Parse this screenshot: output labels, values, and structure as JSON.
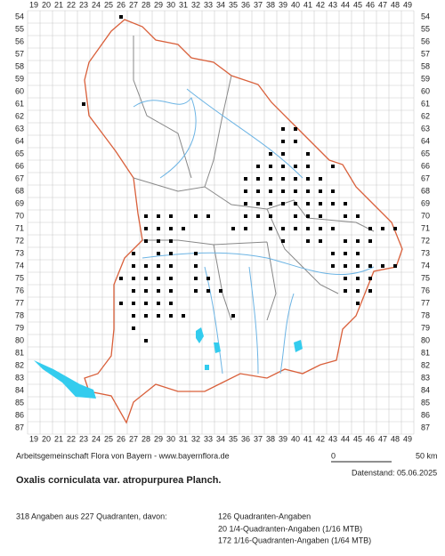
{
  "map": {
    "columns": [
      19,
      20,
      21,
      22,
      23,
      24,
      25,
      26,
      27,
      28,
      29,
      30,
      31,
      32,
      33,
      34,
      35,
      36,
      37,
      38,
      39,
      40,
      41,
      42,
      43,
      44,
      45,
      46,
      47,
      48,
      49
    ],
    "rows": [
      54,
      55,
      56,
      57,
      58,
      59,
      60,
      61,
      62,
      63,
      64,
      65,
      66,
      67,
      68,
      69,
      70,
      71,
      72,
      73,
      74,
      75,
      76,
      77,
      78,
      79,
      80,
      81,
      82,
      83,
      84,
      85,
      86,
      87
    ],
    "dots": [
      [
        26,
        54
      ],
      [
        23,
        61
      ],
      [
        39,
        63
      ],
      [
        40,
        63
      ],
      [
        39,
        64
      ],
      [
        40,
        64
      ],
      [
        38,
        65
      ],
      [
        39,
        65
      ],
      [
        41,
        65
      ],
      [
        37,
        66
      ],
      [
        38,
        66
      ],
      [
        39,
        66
      ],
      [
        40,
        66
      ],
      [
        41,
        66
      ],
      [
        43,
        66
      ],
      [
        36,
        67
      ],
      [
        37,
        67
      ],
      [
        38,
        67
      ],
      [
        39,
        67
      ],
      [
        40,
        67
      ],
      [
        41,
        67
      ],
      [
        42,
        67
      ],
      [
        36,
        68
      ],
      [
        37,
        68
      ],
      [
        38,
        68
      ],
      [
        39,
        68
      ],
      [
        40,
        68
      ],
      [
        41,
        68
      ],
      [
        42,
        68
      ],
      [
        43,
        68
      ],
      [
        36,
        69
      ],
      [
        37,
        69
      ],
      [
        38,
        69
      ],
      [
        39,
        69
      ],
      [
        40,
        69
      ],
      [
        41,
        69
      ],
      [
        42,
        69
      ],
      [
        43,
        69
      ],
      [
        44,
        69
      ],
      [
        28,
        70
      ],
      [
        29,
        70
      ],
      [
        30,
        70
      ],
      [
        32,
        70
      ],
      [
        33,
        70
      ],
      [
        36,
        70
      ],
      [
        37,
        70
      ],
      [
        38,
        70
      ],
      [
        40,
        70
      ],
      [
        41,
        70
      ],
      [
        42,
        70
      ],
      [
        44,
        70
      ],
      [
        45,
        70
      ],
      [
        28,
        71
      ],
      [
        29,
        71
      ],
      [
        30,
        71
      ],
      [
        31,
        71
      ],
      [
        35,
        71
      ],
      [
        36,
        71
      ],
      [
        38,
        71
      ],
      [
        39,
        71
      ],
      [
        40,
        71
      ],
      [
        41,
        71
      ],
      [
        42,
        71
      ],
      [
        43,
        71
      ],
      [
        46,
        71
      ],
      [
        47,
        71
      ],
      [
        48,
        71
      ],
      [
        28,
        72
      ],
      [
        29,
        72
      ],
      [
        30,
        72
      ],
      [
        39,
        72
      ],
      [
        41,
        72
      ],
      [
        42,
        72
      ],
      [
        44,
        72
      ],
      [
        45,
        72
      ],
      [
        46,
        72
      ],
      [
        27,
        73
      ],
      [
        29,
        73
      ],
      [
        30,
        73
      ],
      [
        32,
        73
      ],
      [
        43,
        73
      ],
      [
        44,
        73
      ],
      [
        45,
        73
      ],
      [
        27,
        74
      ],
      [
        28,
        74
      ],
      [
        29,
        74
      ],
      [
        30,
        74
      ],
      [
        32,
        74
      ],
      [
        43,
        74
      ],
      [
        44,
        74
      ],
      [
        45,
        74
      ],
      [
        46,
        74
      ],
      [
        47,
        74
      ],
      [
        48,
        74
      ],
      [
        26,
        75
      ],
      [
        27,
        75
      ],
      [
        28,
        75
      ],
      [
        29,
        75
      ],
      [
        30,
        75
      ],
      [
        32,
        75
      ],
      [
        33,
        75
      ],
      [
        44,
        75
      ],
      [
        45,
        75
      ],
      [
        46,
        75
      ],
      [
        27,
        76
      ],
      [
        28,
        76
      ],
      [
        29,
        76
      ],
      [
        30,
        76
      ],
      [
        32,
        76
      ],
      [
        33,
        76
      ],
      [
        34,
        76
      ],
      [
        44,
        76
      ],
      [
        45,
        76
      ],
      [
        46,
        76
      ],
      [
        26,
        77
      ],
      [
        27,
        77
      ],
      [
        28,
        77
      ],
      [
        29,
        77
      ],
      [
        30,
        77
      ],
      [
        45,
        77
      ],
      [
        27,
        78
      ],
      [
        28,
        78
      ],
      [
        29,
        78
      ],
      [
        30,
        78
      ],
      [
        31,
        78
      ],
      [
        35,
        78
      ],
      [
        27,
        79
      ],
      [
        28,
        80
      ]
    ],
    "credit": "Arbeitsgemeinschaft Flora von Bayern - www.bayernflora.de",
    "scale_start": "0",
    "scale_end": "50 km",
    "date": "Datenstand: 05.06.2025",
    "title": "Oxalis corniculata var. atropurpurea Planch.",
    "summary": "318 Angaben aus 227 Quadranten, davon:",
    "breakdown": [
      "126 Quadranten-Angaben",
      "20 1/4-Quadranten-Angaben (1/16 MTB)",
      "172 1/16-Quadranten-Angaben (1/64 MTB)"
    ]
  }
}
